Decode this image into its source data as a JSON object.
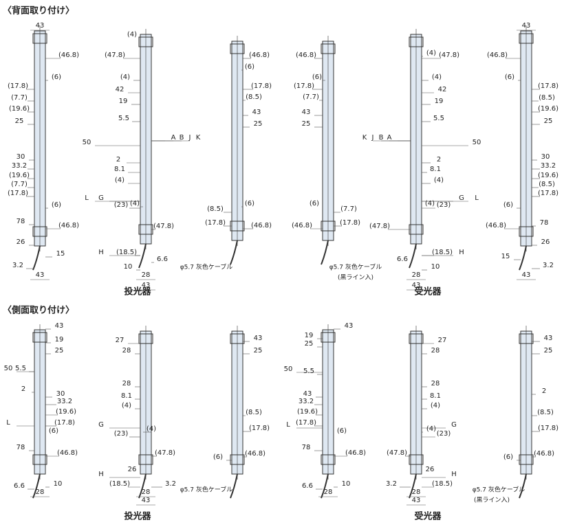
{
  "sections": [
    {
      "title": "〈背面取り付け〉",
      "emitter": "投光器",
      "receiver": "受光器",
      "views": [
        {
          "labels": [
            "43",
            "(46.8)",
            "(6)",
            "(17.8)",
            "(7.7)",
            "(19.6)",
            "25",
            "30",
            "33.2",
            "(19.6)",
            "(7.7)",
            "(17.8)",
            "(6)",
            "78",
            "(46.8)",
            "26",
            "15",
            "3.2",
            "43"
          ],
          "captions": []
        },
        {
          "labels": [
            "(4)",
            "(47.8)",
            "(4)",
            "42",
            "19",
            "5.5",
            "50",
            "2",
            "8.1",
            "(4)",
            "A",
            "B",
            "J",
            "K",
            "L",
            "G",
            "(23)",
            "(4)",
            "(47.8)",
            "H",
            "(18.5)",
            "6.6",
            "10",
            "28",
            "43"
          ],
          "captions": []
        },
        {
          "labels": [
            "(46.8)",
            "(6)",
            "(17.8)",
            "(8.5)",
            "43",
            "25",
            "(8.5)",
            "(6)",
            "(17.8)",
            "(46.8)"
          ],
          "captions": [
            "φ5.7 灰色ケーブル"
          ]
        },
        {
          "labels": [
            "(46.8)",
            "(6)",
            "(17.8)",
            "(7.7)",
            "43",
            "25",
            "(6)",
            "(7.7)",
            "(46.8)",
            "(17.8)"
          ],
          "captions": [
            "φ5.7 灰色ケーブル",
            "(黒ライン入)"
          ]
        },
        {
          "labels": [
            "(4)",
            "(47.8)",
            "(4)",
            "42",
            "19",
            "5.5",
            "50",
            "2",
            "8.1",
            "(4)",
            "K",
            "J",
            "B",
            "A",
            "G",
            "L",
            "(4)",
            "(23)",
            "(47.8)",
            "(18.5)",
            "H",
            "6.6",
            "10",
            "28",
            "43"
          ],
          "captions": []
        },
        {
          "labels": [
            "43",
            "(46.8)",
            "(6)",
            "(17.8)",
            "(8.5)",
            "(19.6)",
            "25",
            "30",
            "33.2",
            "(19.6)",
            "(8.5)",
            "(17.8)",
            "(6)",
            "78",
            "(46.8)",
            "26",
            "15",
            "3.2",
            "43"
          ],
          "captions": []
        }
      ]
    },
    {
      "title": "〈側面取り付け〉",
      "emitter": "投光器",
      "receiver": "受光器",
      "views": [
        {
          "labels": [
            "43",
            "19",
            "25",
            "50",
            "5.5",
            "2",
            "30",
            "33.2",
            "(19.6)",
            "L",
            "(17.8)",
            "(6)",
            "78",
            "(46.8)",
            "6.6",
            "10",
            "28"
          ],
          "captions": []
        },
        {
          "labels": [
            "27",
            "28",
            "28",
            "8.1",
            "(4)",
            "G",
            "(23)",
            "(4)",
            "(47.8)",
            "H",
            "26",
            "(18.5)",
            "3.2",
            "28",
            "43"
          ],
          "captions": []
        },
        {
          "labels": [
            "43",
            "25",
            "(8.5)",
            "(17.8)",
            "(6)",
            "(46.8)"
          ],
          "captions": [
            "φ5.7 灰色ケーブル"
          ]
        },
        {
          "labels": [
            "43",
            "19",
            "25",
            "50",
            "5.5",
            "43",
            "33.2",
            "(19.6)",
            "L",
            "(17.8)",
            "(6)",
            "78",
            "(46.8)",
            "6.6",
            "10",
            "28"
          ],
          "captions": []
        },
        {
          "labels": [
            "27",
            "28",
            "28",
            "8.1",
            "(4)",
            "G",
            "(4)",
            "(23)",
            "(47.8)",
            "26",
            "H",
            "3.2",
            "(18.5)",
            "28",
            "43"
          ],
          "captions": []
        },
        {
          "labels": [
            "43",
            "25",
            "2",
            "(8.5)",
            "(17.8)",
            "(6)",
            "(46.8)"
          ],
          "captions": [
            "φ5.7 灰色ケーブル",
            "(黒ライン入)"
          ]
        }
      ]
    }
  ]
}
